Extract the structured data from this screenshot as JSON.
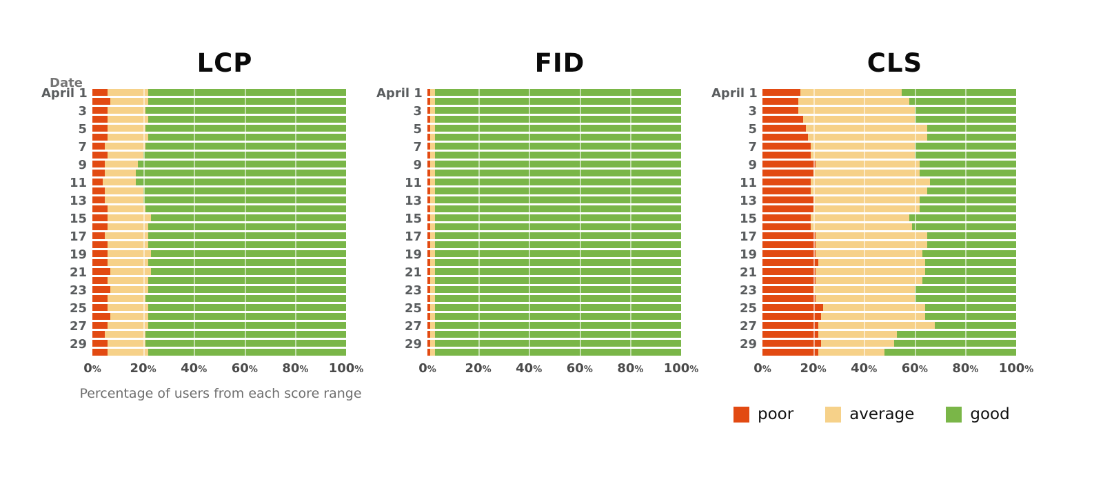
{
  "axis": {
    "date_header": "Date",
    "x_ticks": [
      "0%",
      "20%",
      "40%",
      "60%",
      "80%",
      "100%"
    ],
    "x_axis_label": "Percentage of users from each score range",
    "y_tick_labels": [
      "April 1",
      "3",
      "5",
      "7",
      "9",
      "11",
      "13",
      "15",
      "17",
      "19",
      "21",
      "23",
      "25",
      "27",
      "29"
    ]
  },
  "colors": {
    "poor": "#e24a12",
    "average": "#f6d189",
    "good": "#7ab648"
  },
  "legend": {
    "items": [
      {
        "label": "poor",
        "color": "#e24a12"
      },
      {
        "label": "average",
        "color": "#f6d189"
      },
      {
        "label": "good",
        "color": "#7ab648"
      }
    ]
  },
  "chart_data": [
    {
      "type": "bar",
      "subtype": "horizontal-stacked-100",
      "title": "LCP",
      "xlabel": "Percentage of users from each score range",
      "xlim": [
        0,
        100
      ],
      "categories": [
        "April 1",
        "April 2",
        "April 3",
        "April 4",
        "April 5",
        "April 6",
        "April 7",
        "April 8",
        "April 9",
        "April 10",
        "April 11",
        "April 12",
        "April 13",
        "April 14",
        "April 15",
        "April 16",
        "April 17",
        "April 18",
        "April 19",
        "April 20",
        "April 21",
        "April 22",
        "April 23",
        "April 24",
        "April 25",
        "April 26",
        "April 27",
        "April 28",
        "April 29",
        "April 30"
      ],
      "series": [
        {
          "name": "poor",
          "values": [
            6,
            7,
            6,
            6,
            6,
            6,
            5,
            6,
            5,
            5,
            4,
            5,
            5,
            6,
            6,
            6,
            5,
            6,
            6,
            6,
            7,
            6,
            7,
            6,
            6,
            7,
            6,
            5,
            6,
            6
          ]
        },
        {
          "name": "average",
          "values": [
            16,
            15,
            15,
            16,
            15,
            16,
            16,
            14,
            13,
            12,
            13,
            15,
            15,
            15,
            17,
            16,
            17,
            16,
            17,
            16,
            16,
            16,
            15,
            15,
            16,
            15,
            16,
            16,
            15,
            16
          ]
        },
        {
          "name": "good",
          "values": [
            78,
            78,
            79,
            78,
            79,
            78,
            79,
            80,
            82,
            83,
            83,
            80,
            80,
            79,
            77,
            78,
            78,
            78,
            77,
            78,
            77,
            78,
            78,
            79,
            78,
            78,
            78,
            79,
            79,
            78
          ]
        }
      ]
    },
    {
      "type": "bar",
      "subtype": "horizontal-stacked-100",
      "title": "FID",
      "xlim": [
        0,
        100
      ],
      "categories": [
        "April 1",
        "April 2",
        "April 3",
        "April 4",
        "April 5",
        "April 6",
        "April 7",
        "April 8",
        "April 9",
        "April 10",
        "April 11",
        "April 12",
        "April 13",
        "April 14",
        "April 15",
        "April 16",
        "April 17",
        "April 18",
        "April 19",
        "April 20",
        "April 21",
        "April 22",
        "April 23",
        "April 24",
        "April 25",
        "April 26",
        "April 27",
        "April 28",
        "April 29",
        "April 30"
      ],
      "series": [
        {
          "name": "poor",
          "values": [
            1,
            1,
            1,
            1,
            1,
            1,
            1,
            1,
            1,
            1,
            1,
            1,
            1,
            1,
            1,
            1,
            1,
            1,
            1,
            1,
            1,
            1,
            1,
            1,
            1,
            1,
            1,
            1,
            1,
            1
          ]
        },
        {
          "name": "average",
          "values": [
            2,
            2,
            2,
            2,
            2,
            2,
            2,
            2,
            2,
            2,
            2,
            2,
            2,
            2,
            2,
            2,
            2,
            2,
            2,
            2,
            2,
            2,
            2,
            2,
            2,
            2,
            2,
            2,
            2,
            2
          ]
        },
        {
          "name": "good",
          "values": [
            97,
            97,
            97,
            97,
            97,
            97,
            97,
            97,
            97,
            97,
            97,
            97,
            97,
            97,
            97,
            97,
            97,
            97,
            97,
            97,
            97,
            97,
            97,
            97,
            97,
            97,
            97,
            97,
            97,
            97
          ]
        }
      ]
    },
    {
      "type": "bar",
      "subtype": "horizontal-stacked-100",
      "title": "CLS",
      "xlim": [
        0,
        100
      ],
      "categories": [
        "April 1",
        "April 2",
        "April 3",
        "April 4",
        "April 5",
        "April 6",
        "April 7",
        "April 8",
        "April 9",
        "April 10",
        "April 11",
        "April 12",
        "April 13",
        "April 14",
        "April 15",
        "April 16",
        "April 17",
        "April 18",
        "April 19",
        "April 20",
        "April 21",
        "April 22",
        "April 23",
        "April 24",
        "April 25",
        "April 26",
        "April 27",
        "April 28",
        "April 29",
        "April 30"
      ],
      "series": [
        {
          "name": "poor",
          "values": [
            15,
            14,
            14,
            16,
            17,
            18,
            19,
            19,
            21,
            20,
            19,
            19,
            20,
            20,
            19,
            19,
            21,
            21,
            21,
            22,
            21,
            21,
            20,
            21,
            24,
            23,
            22,
            22,
            23,
            22
          ]
        },
        {
          "name": "average",
          "values": [
            40,
            44,
            46,
            44,
            48,
            47,
            41,
            41,
            41,
            42,
            47,
            46,
            42,
            42,
            39,
            40,
            44,
            44,
            42,
            42,
            43,
            42,
            40,
            39,
            40,
            41,
            46,
            31,
            29,
            26
          ]
        },
        {
          "name": "good",
          "values": [
            45,
            42,
            40,
            40,
            35,
            35,
            40,
            40,
            38,
            38,
            34,
            35,
            38,
            38,
            42,
            41,
            35,
            35,
            37,
            36,
            36,
            37,
            40,
            40,
            36,
            36,
            32,
            47,
            48,
            52
          ]
        }
      ]
    }
  ]
}
